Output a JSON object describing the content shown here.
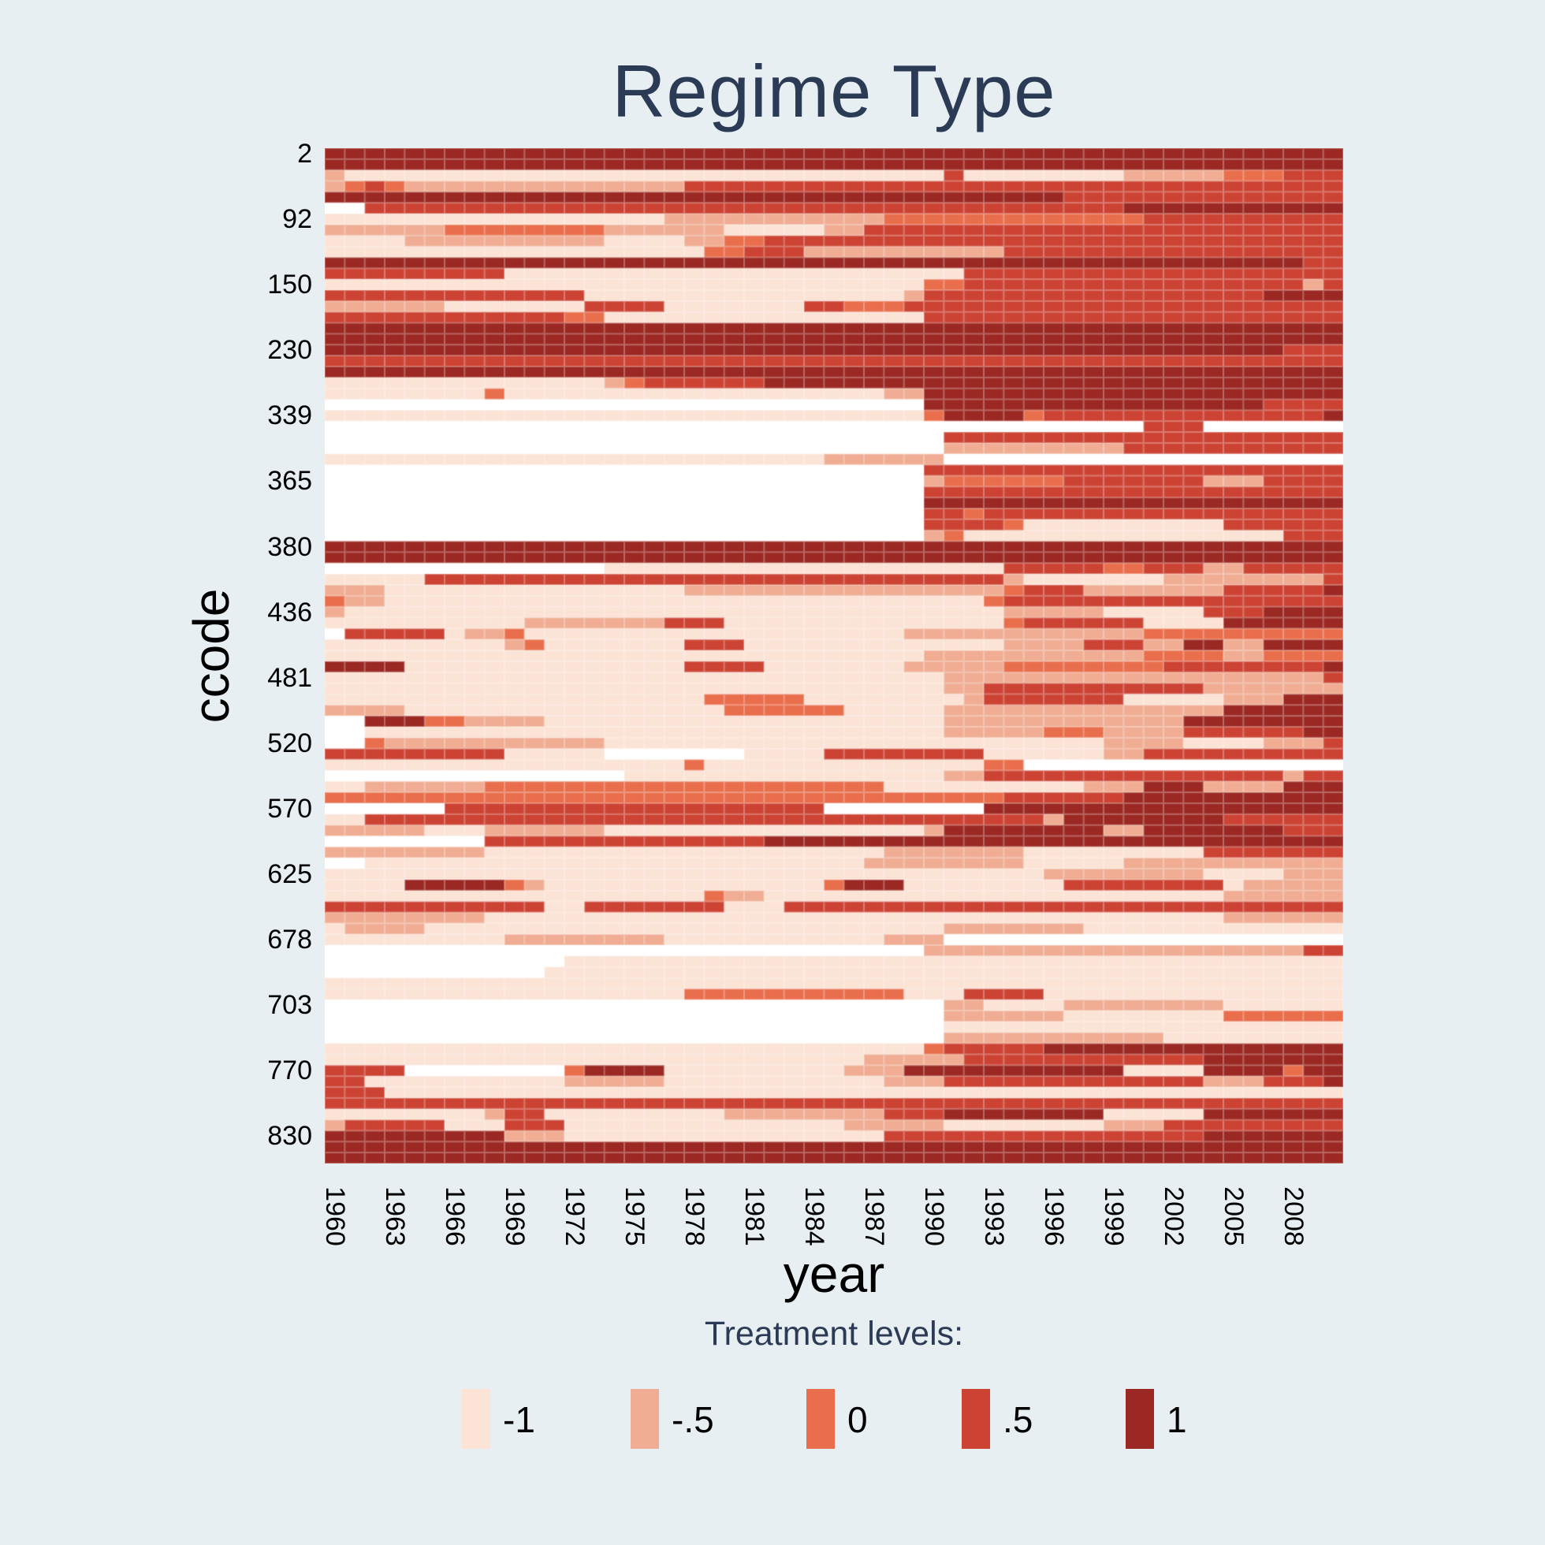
{
  "page": {
    "background": "#e8eff2",
    "accent_navy": "#2b3a55"
  },
  "header": {
    "title": "Regime Type"
  },
  "chart_data": {
    "type": "heatmap",
    "title": "Regime Type",
    "xlabel": "year",
    "ylabel": "ccode",
    "x_range": {
      "first_year": 1960,
      "last_year": 2010
    },
    "x_ticks": [
      1960,
      1963,
      1966,
      1969,
      1972,
      1975,
      1978,
      1981,
      1984,
      1987,
      1990,
      1993,
      1996,
      1999,
      2002,
      2005,
      2008
    ],
    "y_ticks": {
      "labels": [
        "2",
        "92",
        "150",
        "230",
        "339",
        "365",
        "380",
        "436",
        "481",
        "520",
        "570",
        "625",
        "678",
        "703",
        "770",
        "830"
      ],
      "rows": [
        0,
        6,
        12,
        18,
        24,
        30,
        36,
        42,
        48,
        54,
        60,
        66,
        72,
        78,
        84,
        90
      ]
    },
    "legend": {
      "title": "Treatment levels:",
      "entries": [
        {
          "label": "-1",
          "value": -1,
          "color": "#fbe3d6"
        },
        {
          "label": "-.5",
          "value": -0.5,
          "color": "#f0ad93"
        },
        {
          "label": "0",
          "value": 0,
          "color": "#e96e4c"
        },
        {
          "label": ".5",
          "value": 0.5,
          "color": "#cc4334"
        },
        {
          "label": "1",
          "value": 1,
          "color": "#9b2822"
        }
      ]
    },
    "level_codes": {
      "a": -1,
      "b": -0.5,
      "c": 0,
      "d": 0.5,
      "e": 1,
      "w": null
    },
    "colors": {
      "a": "#fbe3d6",
      "b": "#f0ad93",
      "c": "#e96e4c",
      "d": "#cc4334",
      "e": "#9b2822",
      "w": "#ffffff"
    },
    "grid_line_color": "rgba(255,255,255,0.3)",
    "rows_rle": [
      "e51",
      "e51",
      "b a30 d a8 b5 c3 d3",
      "b c d c b14 d33",
      "e37 d14",
      "w2 d38 e11",
      "a17 b11 c13 d10",
      "b6 c8 b6 a5 b2 d24",
      "a4 b10 a4 b2 c2 d29",
      "a19 c2 d3 b10 d17",
      "e49 d2",
      "d9 a23 d19",
      "a30 c2 d17 b d",
      "d13 a16 b d17 e4",
      "b6 a7 d4 a7 d2 c3 d22",
      "d12 c2 a16 d21",
      "e51",
      "e51",
      "e48 d3",
      "d51",
      "e51",
      "a14 b c d6 e29",
      "a8 c a19 b2 e21",
      "w30 e17 d4",
      "a30 c e4 c d14 e",
      "w41 d3 w7",
      "w31 d20",
      "w31 b9 d11",
      "a25 b6 w20",
      "w30 d21",
      "w30 b c6 d7 b3 d4",
      "w30 d21",
      "w30 e21",
      "w30 d2 c d18",
      "w30 d4 c a10 d6",
      "w30 b c a16 d3",
      "e51",
      "e51",
      "w14 a20 d5 c2 d3 b2 d5",
      "a5 d29 b a7 b8 d",
      "b3 a15 b16 c d3 b7 d5 e",
      "c b2 a30 c d17",
      "b a33 b5 a5 d3 e4",
      "a10 b7 d3 a14 c d6 a4 e6",
      "w d5 a b2 c a19 b12 c10",
      "a9 b c a7 d3 a13 b4 d3 b2 e2 b2 e4",
      "a30 b11 c4 b2 c4",
      "e4 a14 d4 a7 b5 c8 d8 e",
      "a31 b19 d",
      "a31 b2 d11 b7",
      "a19 c5 a8 b d7 a5 b3 e3",
      "b4 a16 c6 a5 b14 e6",
      "w2 e3 c2 b4 a20 b12 e8",
      "w2 a29 b5 c3 b4 d6 e2",
      "w2 c b11 a25 b4 a4 b3 d",
      "d9 a5 w7 a4 d8 a6 b2 d10",
      "a18 c a14 c2 w16",
      "w15 a16 b2 d15 b d2",
      "a2 b6 c20 a10 b3 e3 b4 e3",
      "c34 d6 e11",
      "w6 d19 w8 e18",
      "a2 d34 b e8 d6",
      "b5 a3 b6 a16 b e8 b2 e7 d3",
      "w8 d14 e29",
      "b8 a20 b7 a9 d7",
      "w2 a25 b8 a5 b11",
      "a36 b8 a4 b3",
      "a4 e5 c b a14 c e3 a8 d8 a b5",
      "a19 c b2 a23 b6",
      "d11 a2 d7 a3 d28",
      "b8 a37 b6",
      "a b4 a26 b7 a13",
      "a9 b8 a11 b3 w20",
      "w30 b19 d2",
      "w12 a39",
      "w11 a40",
      "a51",
      "a18 c11 a3 d4 a15",
      "w31 b2 a4 b8 a6",
      "w31 b6 a8 c6",
      "w31 a20",
      "w31 b11 a9",
      "a30 c d5 e15",
      "a27 b5 d12 e7",
      "d4 w8 c e4 a9 b3 e11 a4 e4 c e2",
      "d2 a10 b5 a11 b3 d13 b3 d3 e",
      "d3 a48",
      "d51",
      "a8 b d2 a9 b8 d3 e8 a5 e7",
      "b d5 a3 d3 a14 b5 a8 b3 d9",
      "e9 b3 a16 d16 e7",
      "e51",
      "e51"
    ]
  }
}
